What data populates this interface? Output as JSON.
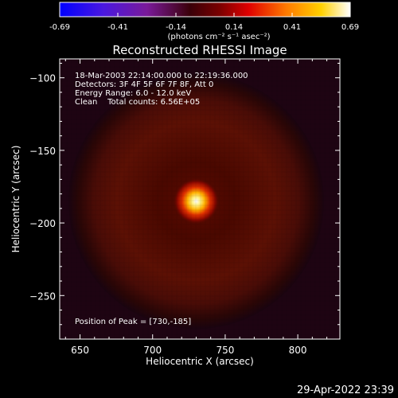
{
  "colorbar": {
    "ticks": [
      "-0.69",
      "-0.41",
      "-0.14",
      "0.14",
      "0.41",
      "0.69"
    ],
    "units_label": "(photons cm⁻² s⁻¹ asec⁻²)",
    "colors": [
      "#0000ff",
      "#5a10d0",
      "#7a1a90",
      "#3a0000",
      "#a00000",
      "#ff0000",
      "#ff8000",
      "#ffd000",
      "#ffffff"
    ]
  },
  "info": {
    "time_range": "18-Mar-2003 22:14:00.000 to 22:19:36.000",
    "detectors": "Detectors: 3F 4F 5F 6F 7F 8F, Att 0",
    "energy": "Energy Range: 6.0 - 12.0 keV",
    "clean": "Clean    Total counts: 6.56E+05",
    "peak": "Position of Peak = [730,-185]"
  },
  "footer": {
    "timestamp": "29-Apr-2022 23:39"
  },
  "chart_data": {
    "type": "heatmap",
    "title": "Reconstructed RHESSI Image",
    "xlabel": "Heliocentric X (arcsec)",
    "ylabel": "Heliocentric Y (arcsec)",
    "xlim": [
      636,
      829
    ],
    "ylim": [
      -280,
      -87
    ],
    "x_ticks": [
      650,
      700,
      750,
      800
    ],
    "y_ticks": [
      -100,
      -150,
      -200,
      -250
    ],
    "x_tick_labels": [
      "650",
      "700",
      "750",
      "800"
    ],
    "y_tick_labels": [
      "−100",
      "−150",
      "−200",
      "−250"
    ],
    "zlim": [
      -0.69,
      0.69
    ],
    "peak": {
      "x": 730,
      "y": -185,
      "value": 0.69
    },
    "background_ring": {
      "center_x": 730,
      "center_y": -185,
      "radius": 88,
      "value": 0.12
    },
    "grid": false
  }
}
